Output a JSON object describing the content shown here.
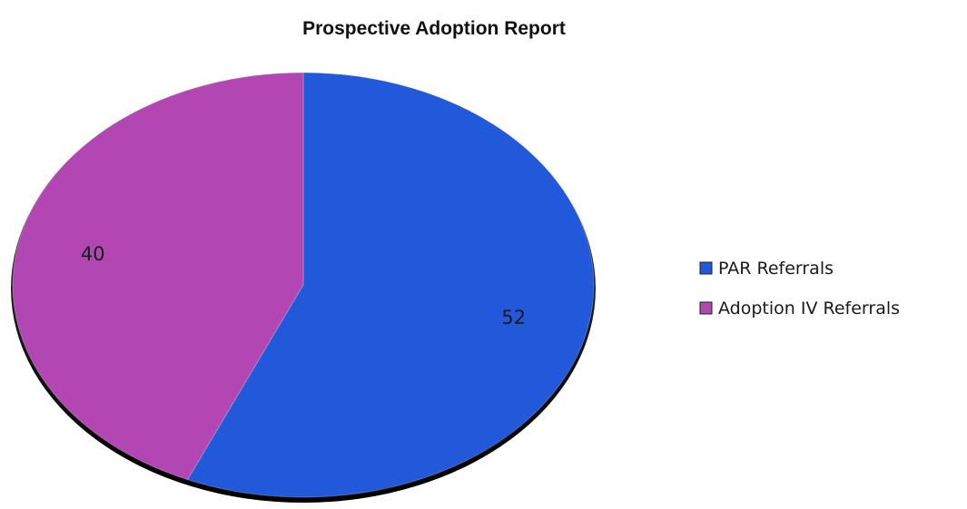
{
  "chart_data": {
    "type": "pie",
    "title": "Prospective Adoption Report",
    "categories": [
      "PAR Referrals",
      "Adoption IV Referrals"
    ],
    "values": [
      52,
      40
    ],
    "data_labels": [
      "52",
      "40"
    ],
    "colors": [
      "#2159DA",
      "#B247B4"
    ],
    "legend_position": "right",
    "start_position": "top",
    "direction": "clockwise"
  }
}
